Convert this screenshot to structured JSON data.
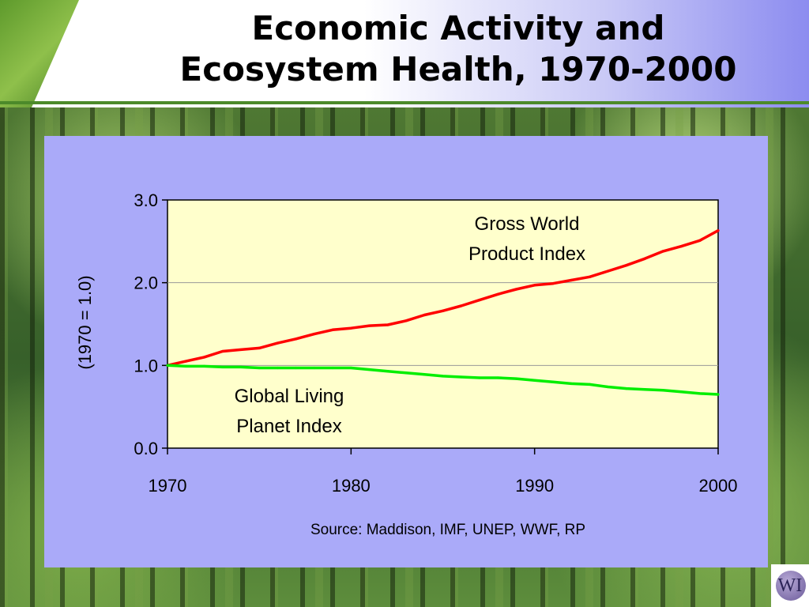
{
  "slide": {
    "title_line1": "Economic Activity and",
    "title_line2": "Ecosystem Health, 1970-2000",
    "logo_text": "WI"
  },
  "chart_data": {
    "type": "line",
    "ylabel": "(1970 = 1.0)",
    "xlim": [
      1970,
      2000
    ],
    "ylim": [
      0,
      3
    ],
    "x_ticks": [
      1970,
      1980,
      1990,
      2000
    ],
    "x_tick_labels": [
      "1970",
      "1980",
      "1990",
      "2000"
    ],
    "y_ticks": [
      0,
      1,
      2,
      3
    ],
    "y_tick_labels": [
      "0.0",
      "1.0",
      "2.0",
      "3.0"
    ],
    "grid": "horizontal",
    "source": "Source:  Maddison, IMF, UNEP, WWF, RP",
    "series": [
      {
        "name": "Gross World Product Index",
        "label_lines": [
          "Gross World",
          "Product Index"
        ],
        "color": "#ff0000",
        "x": [
          1970,
          1971,
          1972,
          1973,
          1974,
          1975,
          1976,
          1977,
          1978,
          1979,
          1980,
          1981,
          1982,
          1983,
          1984,
          1985,
          1986,
          1987,
          1988,
          1989,
          1990,
          1991,
          1992,
          1993,
          1994,
          1995,
          1996,
          1997,
          1998,
          1999,
          2000
        ],
        "values": [
          1.0,
          1.05,
          1.1,
          1.17,
          1.19,
          1.21,
          1.27,
          1.32,
          1.38,
          1.43,
          1.45,
          1.48,
          1.49,
          1.54,
          1.61,
          1.66,
          1.72,
          1.79,
          1.86,
          1.92,
          1.97,
          1.99,
          2.03,
          2.07,
          2.14,
          2.21,
          2.29,
          2.38,
          2.44,
          2.51,
          2.63
        ]
      },
      {
        "name": "Global Living Planet Index",
        "label_lines": [
          "Global Living",
          "Planet Index"
        ],
        "color": "#00ee00",
        "x": [
          1970,
          1971,
          1972,
          1973,
          1974,
          1975,
          1976,
          1977,
          1978,
          1979,
          1980,
          1981,
          1982,
          1983,
          1984,
          1985,
          1986,
          1987,
          1988,
          1989,
          1990,
          1991,
          1992,
          1993,
          1994,
          1995,
          1996,
          1997,
          1998,
          1999,
          2000
        ],
        "values": [
          1.0,
          0.99,
          0.99,
          0.98,
          0.98,
          0.97,
          0.97,
          0.97,
          0.97,
          0.97,
          0.97,
          0.95,
          0.93,
          0.91,
          0.89,
          0.87,
          0.86,
          0.85,
          0.85,
          0.84,
          0.82,
          0.8,
          0.78,
          0.77,
          0.74,
          0.72,
          0.71,
          0.7,
          0.68,
          0.66,
          0.65
        ]
      }
    ]
  }
}
